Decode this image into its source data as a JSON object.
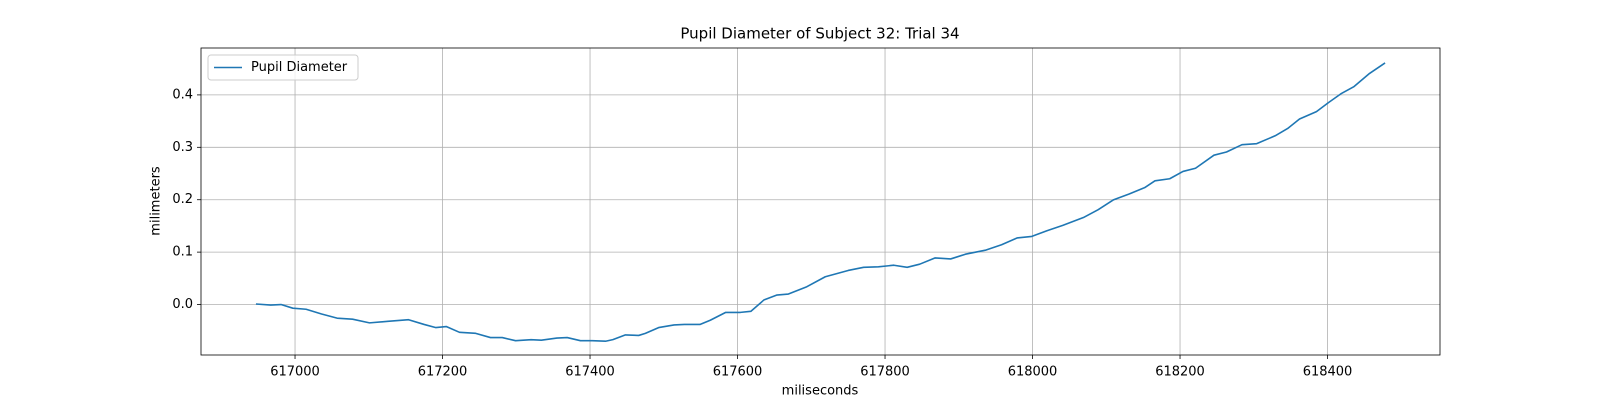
{
  "chart_data": {
    "type": "line",
    "title": "Pupil Diameter of Subject 32: Trial 34",
    "x_label": "miliseconds",
    "y_label": "milimeters",
    "x": [
      616947,
      616967,
      616981,
      616997,
      617015,
      617036,
      617057,
      617078,
      617101,
      617126,
      617154,
      617175,
      617191,
      617205,
      617223,
      617245,
      617265,
      617281,
      617299,
      617320,
      617334,
      617355,
      617369,
      617387,
      617403,
      617421,
      617431,
      617448,
      617466,
      617475,
      617493,
      617514,
      617528,
      617549,
      617563,
      617584,
      617604,
      617618,
      617636,
      617653,
      617669,
      617694,
      617719,
      617750,
      617771,
      617791,
      617812,
      617830,
      617847,
      617868,
      617889,
      617909,
      617937,
      617958,
      617979,
      617999,
      618020,
      618041,
      618069,
      618089,
      618110,
      618131,
      618152,
      618166,
      618186,
      618204,
      618221,
      618246,
      618263,
      618284,
      618304,
      618329,
      618346,
      618362,
      618385,
      618401,
      618418,
      618436,
      618457,
      618478
    ],
    "series": [
      {
        "name": "Pupil Diameter",
        "color": "#1f77b4",
        "values": [
          0.001,
          -0.001,
          0.0,
          -0.007,
          -0.009,
          -0.018,
          -0.026,
          -0.028,
          -0.035,
          -0.032,
          -0.029,
          -0.038,
          -0.044,
          -0.042,
          -0.053,
          -0.055,
          -0.063,
          -0.063,
          -0.069,
          -0.067,
          -0.068,
          -0.064,
          -0.063,
          -0.069,
          -0.069,
          -0.07,
          -0.067,
          -0.058,
          -0.059,
          -0.055,
          -0.044,
          -0.039,
          -0.038,
          -0.038,
          -0.03,
          -0.015,
          -0.015,
          -0.013,
          0.009,
          0.018,
          0.02,
          0.034,
          0.053,
          0.065,
          0.071,
          0.072,
          0.075,
          0.071,
          0.077,
          0.089,
          0.087,
          0.096,
          0.104,
          0.114,
          0.127,
          0.13,
          0.141,
          0.151,
          0.166,
          0.181,
          0.2,
          0.211,
          0.223,
          0.236,
          0.24,
          0.254,
          0.26,
          0.285,
          0.291,
          0.305,
          0.307,
          0.322,
          0.336,
          0.354,
          0.368,
          0.385,
          0.402,
          0.416,
          0.441,
          0.461
        ]
      }
    ],
    "xlim": [
      616872.5,
      618552.5
    ],
    "ylim": [
      -0.0963,
      0.4895
    ],
    "xticks": [
      617000,
      617200,
      617400,
      617600,
      617800,
      618000,
      618200,
      618400
    ],
    "yticks": [
      {
        "value": 0,
        "label": "0.0"
      },
      0.1,
      0.2,
      0.3,
      0.4
    ],
    "grid": true,
    "legend": "upper-left"
  }
}
